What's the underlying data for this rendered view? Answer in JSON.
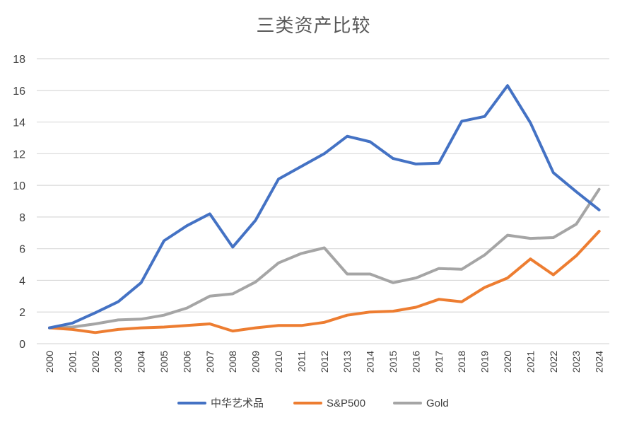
{
  "chart_data": {
    "type": "line",
    "title": "三类资产比较",
    "xlabel": "",
    "ylabel": "",
    "x": [
      "2000",
      "2001",
      "2002",
      "2003",
      "2004",
      "2005",
      "2006",
      "2007",
      "2008",
      "2009",
      "2010",
      "2011",
      "2012",
      "2013",
      "2014",
      "2015",
      "2016",
      "2017",
      "2018",
      "2019",
      "2020",
      "2021",
      "2022",
      "2023",
      "2024"
    ],
    "ylim": [
      0,
      18
    ],
    "yticks": [
      "0",
      "2",
      "4",
      "6",
      "8",
      "10",
      "12",
      "14",
      "16",
      "18"
    ],
    "grid": "horizontal",
    "legend_position": "bottom",
    "series": [
      {
        "name": "中华艺术品",
        "color": "#4472C4",
        "values": [
          1.0,
          1.3,
          1.95,
          2.65,
          3.85,
          6.5,
          7.45,
          8.2,
          6.1,
          7.8,
          10.4,
          11.2,
          12.0,
          13.1,
          12.75,
          11.7,
          11.35,
          11.4,
          14.05,
          14.35,
          16.3,
          13.95,
          10.8,
          9.6,
          8.45
        ]
      },
      {
        "name": "S&P500",
        "color": "#ED7D31",
        "values": [
          1.0,
          0.9,
          0.7,
          0.9,
          1.0,
          1.05,
          1.15,
          1.25,
          0.8,
          1.0,
          1.15,
          1.15,
          1.35,
          1.8,
          2.0,
          2.05,
          2.3,
          2.8,
          2.65,
          3.55,
          4.15,
          5.35,
          4.35,
          5.55,
          7.1
        ]
      },
      {
        "name": "Gold",
        "color": "#A5A5A5",
        "values": [
          1.0,
          1.05,
          1.25,
          1.5,
          1.55,
          1.8,
          2.25,
          3.0,
          3.15,
          3.9,
          5.1,
          5.7,
          6.05,
          4.4,
          4.4,
          3.85,
          4.15,
          4.75,
          4.7,
          5.6,
          6.85,
          6.65,
          6.7,
          7.55,
          9.75
        ]
      }
    ]
  }
}
